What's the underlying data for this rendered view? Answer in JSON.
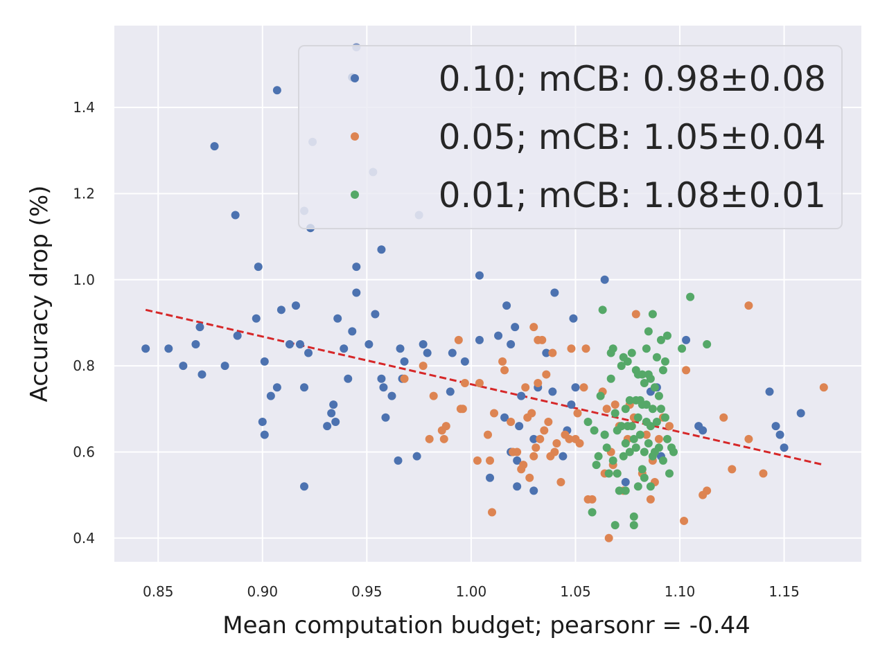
{
  "chart_data": {
    "type": "scatter",
    "xlabel": "Mean computation budget; pearsonr = -0.44",
    "ylabel": "Accuracy drop (%)",
    "xlim": [
      0.829,
      1.187
    ],
    "ylim": [
      0.345,
      1.59
    ],
    "x_ticks": [
      "0.85",
      "0.90",
      "0.95",
      "1.00",
      "1.05",
      "1.10",
      "1.15"
    ],
    "y_ticks": [
      "0.4",
      "0.6",
      "0.8",
      "1.0",
      "1.2",
      "1.4"
    ],
    "grid": true,
    "legend_position": "top-right",
    "colors": {
      "background": "#eaeaf2",
      "grid": "#ffffff",
      "trend": "#d62728"
    },
    "trend_line": {
      "x": [
        0.844,
        1.169
      ],
      "y": [
        0.93,
        0.57
      ]
    },
    "series": [
      {
        "name": "0.10; mCB: 0.98±0.08",
        "color": "#4c72b0",
        "points": [
          [
            0.844,
            0.84
          ],
          [
            0.855,
            0.84
          ],
          [
            0.868,
            0.85
          ],
          [
            0.862,
            0.8
          ],
          [
            0.87,
            0.89
          ],
          [
            0.871,
            0.78
          ],
          [
            0.877,
            1.31
          ],
          [
            0.882,
            0.8
          ],
          [
            0.887,
            1.15
          ],
          [
            0.888,
            0.87
          ],
          [
            0.897,
            0.91
          ],
          [
            0.898,
            1.03
          ],
          [
            0.9,
            0.67
          ],
          [
            0.901,
            0.64
          ],
          [
            0.901,
            0.81
          ],
          [
            0.904,
            0.73
          ],
          [
            0.907,
            0.75
          ],
          [
            0.907,
            1.44
          ],
          [
            0.909,
            0.93
          ],
          [
            0.913,
            0.85
          ],
          [
            0.916,
            0.94
          ],
          [
            0.918,
            0.85
          ],
          [
            0.92,
            0.75
          ],
          [
            0.92,
            0.52
          ],
          [
            0.922,
            0.83
          ],
          [
            0.923,
            1.12
          ],
          [
            0.931,
            0.66
          ],
          [
            0.933,
            0.69
          ],
          [
            0.934,
            0.71
          ],
          [
            0.935,
            0.67
          ],
          [
            0.936,
            0.91
          ],
          [
            0.939,
            0.84
          ],
          [
            0.941,
            0.77
          ],
          [
            0.943,
            1.47
          ],
          [
            0.943,
            0.88
          ],
          [
            0.945,
            1.03
          ],
          [
            0.945,
            0.97
          ],
          [
            0.951,
            0.85
          ],
          [
            0.954,
            0.92
          ],
          [
            0.957,
            1.07
          ],
          [
            0.957,
            0.77
          ],
          [
            0.958,
            0.75
          ],
          [
            0.959,
            0.68
          ],
          [
            0.962,
            0.73
          ],
          [
            0.965,
            0.58
          ],
          [
            0.966,
            0.84
          ],
          [
            0.967,
            0.77
          ],
          [
            0.968,
            0.81
          ],
          [
            0.974,
            0.59
          ],
          [
            0.977,
            0.85
          ],
          [
            0.979,
            0.83
          ],
          [
            0.99,
            0.74
          ],
          [
            0.991,
            0.83
          ],
          [
            0.997,
            0.81
          ],
          [
            1.004,
            1.01
          ],
          [
            1.004,
            0.86
          ],
          [
            1.009,
            0.54
          ],
          [
            1.013,
            0.87
          ],
          [
            1.016,
            0.68
          ],
          [
            1.017,
            0.94
          ],
          [
            1.019,
            0.6
          ],
          [
            1.019,
            0.85
          ],
          [
            1.021,
            0.89
          ],
          [
            1.022,
            0.58
          ],
          [
            1.022,
            0.52
          ],
          [
            1.023,
            0.66
          ],
          [
            1.024,
            0.73
          ],
          [
            1.03,
            0.63
          ],
          [
            1.03,
            0.51
          ],
          [
            1.032,
            0.75
          ],
          [
            1.036,
            0.83
          ],
          [
            1.039,
            0.74
          ],
          [
            1.04,
            0.97
          ],
          [
            1.044,
            0.59
          ],
          [
            1.046,
            0.65
          ],
          [
            1.048,
            0.71
          ],
          [
            1.049,
            0.91
          ],
          [
            1.05,
            0.75
          ],
          [
            1.064,
            1.0
          ],
          [
            1.064,
            0.64
          ],
          [
            1.074,
            0.53
          ],
          [
            1.086,
            0.74
          ],
          [
            1.089,
            0.75
          ],
          [
            1.091,
            0.59
          ],
          [
            1.103,
            0.86
          ],
          [
            1.109,
            0.66
          ],
          [
            1.111,
            0.65
          ],
          [
            1.143,
            0.74
          ],
          [
            1.146,
            0.66
          ],
          [
            1.148,
            0.64
          ],
          [
            1.15,
            0.61
          ],
          [
            1.158,
            0.69
          ]
        ]
      },
      {
        "name": "",
        "color": "#8da0c9",
        "points": [
          [
            0.945,
            1.54
          ],
          [
            0.924,
            1.32
          ],
          [
            0.953,
            1.25
          ],
          [
            0.92,
            1.16
          ],
          [
            0.975,
            1.15
          ]
        ]
      },
      {
        "name": "0.05; mCB: 1.05±0.04",
        "color": "#dd8452",
        "points": [
          [
            0.968,
            0.77
          ],
          [
            0.977,
            0.8
          ],
          [
            0.98,
            0.63
          ],
          [
            0.982,
            0.73
          ],
          [
            0.986,
            0.65
          ],
          [
            0.987,
            0.63
          ],
          [
            0.988,
            0.66
          ],
          [
            0.994,
            0.86
          ],
          [
            0.995,
            0.7
          ],
          [
            0.996,
            0.7
          ],
          [
            0.997,
            0.76
          ],
          [
            1.003,
            0.58
          ],
          [
            1.004,
            0.76
          ],
          [
            1.008,
            0.64
          ],
          [
            1.009,
            0.58
          ],
          [
            1.01,
            0.46
          ],
          [
            1.011,
            0.69
          ],
          [
            1.015,
            0.81
          ],
          [
            1.016,
            0.79
          ],
          [
            1.019,
            0.67
          ],
          [
            1.02,
            0.6
          ],
          [
            1.022,
            0.6
          ],
          [
            1.024,
            0.56
          ],
          [
            1.025,
            0.57
          ],
          [
            1.026,
            0.75
          ],
          [
            1.027,
            0.68
          ],
          [
            1.028,
            0.54
          ],
          [
            1.029,
            0.69
          ],
          [
            1.03,
            0.89
          ],
          [
            1.03,
            0.59
          ],
          [
            1.031,
            0.61
          ],
          [
            1.032,
            0.86
          ],
          [
            1.032,
            0.76
          ],
          [
            1.033,
            0.63
          ],
          [
            1.034,
            0.86
          ],
          [
            1.035,
            0.65
          ],
          [
            1.036,
            0.78
          ],
          [
            1.037,
            0.67
          ],
          [
            1.038,
            0.59
          ],
          [
            1.039,
            0.83
          ],
          [
            1.04,
            0.6
          ],
          [
            1.041,
            0.62
          ],
          [
            1.043,
            0.53
          ],
          [
            1.045,
            0.64
          ],
          [
            1.047,
            0.63
          ],
          [
            1.048,
            0.84
          ],
          [
            1.05,
            0.63
          ],
          [
            1.051,
            0.69
          ],
          [
            1.052,
            0.62
          ],
          [
            1.054,
            0.75
          ],
          [
            1.055,
            0.84
          ],
          [
            1.056,
            0.49
          ],
          [
            1.058,
            0.49
          ],
          [
            1.063,
            0.74
          ],
          [
            1.064,
            0.55
          ],
          [
            1.065,
            0.7
          ],
          [
            1.066,
            0.4
          ],
          [
            1.067,
            0.6
          ],
          [
            1.068,
            0.57
          ],
          [
            1.069,
            0.71
          ],
          [
            1.07,
            0.55
          ],
          [
            1.071,
            0.66
          ],
          [
            1.073,
            0.51
          ],
          [
            1.075,
            0.63
          ],
          [
            1.076,
            0.71
          ],
          [
            1.078,
            0.68
          ],
          [
            1.079,
            0.92
          ],
          [
            1.082,
            0.55
          ],
          [
            1.084,
            0.64
          ],
          [
            1.086,
            0.49
          ],
          [
            1.087,
            0.58
          ],
          [
            1.088,
            0.53
          ],
          [
            1.09,
            0.63
          ],
          [
            1.092,
            0.68
          ],
          [
            1.095,
            0.66
          ],
          [
            1.102,
            0.44
          ],
          [
            1.103,
            0.79
          ],
          [
            1.111,
            0.5
          ],
          [
            1.113,
            0.51
          ],
          [
            1.121,
            0.68
          ],
          [
            1.125,
            0.56
          ],
          [
            1.133,
            0.94
          ],
          [
            1.133,
            0.63
          ],
          [
            1.14,
            0.55
          ],
          [
            1.169,
            0.75
          ]
        ]
      },
      {
        "name": "0.01; mCB: 1.08±0.01",
        "color": "#55a868",
        "points": [
          [
            1.056,
            0.67
          ],
          [
            1.058,
            0.46
          ],
          [
            1.059,
            0.65
          ],
          [
            1.06,
            0.57
          ],
          [
            1.061,
            0.59
          ],
          [
            1.062,
            0.73
          ],
          [
            1.063,
            0.93
          ],
          [
            1.064,
            0.64
          ],
          [
            1.065,
            0.61
          ],
          [
            1.066,
            0.55
          ],
          [
            1.067,
            0.83
          ],
          [
            1.067,
            0.77
          ],
          [
            1.068,
            0.58
          ],
          [
            1.068,
            0.84
          ],
          [
            1.069,
            0.69
          ],
          [
            1.069,
            0.43
          ],
          [
            1.07,
            0.65
          ],
          [
            1.07,
            0.55
          ],
          [
            1.071,
            0.51
          ],
          [
            1.072,
            0.8
          ],
          [
            1.072,
            0.66
          ],
          [
            1.073,
            0.82
          ],
          [
            1.073,
            0.59
          ],
          [
            1.074,
            0.62
          ],
          [
            1.074,
            0.7
          ],
          [
            1.074,
            0.51
          ],
          [
            1.075,
            0.81
          ],
          [
            1.075,
            0.66
          ],
          [
            1.076,
            0.72
          ],
          [
            1.076,
            0.6
          ],
          [
            1.077,
            0.83
          ],
          [
            1.077,
            0.66
          ],
          [
            1.078,
            0.63
          ],
          [
            1.078,
            0.45
          ],
          [
            1.078,
            0.43
          ],
          [
            1.079,
            0.79
          ],
          [
            1.079,
            0.72
          ],
          [
            1.079,
            0.61
          ],
          [
            1.08,
            0.78
          ],
          [
            1.08,
            0.68
          ],
          [
            1.08,
            0.52
          ],
          [
            1.081,
            0.72
          ],
          [
            1.081,
            0.64
          ],
          [
            1.082,
            0.78
          ],
          [
            1.082,
            0.71
          ],
          [
            1.082,
            0.56
          ],
          [
            1.083,
            0.76
          ],
          [
            1.083,
            0.6
          ],
          [
            1.083,
            0.54
          ],
          [
            1.084,
            0.84
          ],
          [
            1.084,
            0.71
          ],
          [
            1.084,
            0.67
          ],
          [
            1.085,
            0.88
          ],
          [
            1.085,
            0.78
          ],
          [
            1.085,
            0.62
          ],
          [
            1.086,
            0.77
          ],
          [
            1.086,
            0.66
          ],
          [
            1.086,
            0.52
          ],
          [
            1.087,
            0.92
          ],
          [
            1.087,
            0.7
          ],
          [
            1.087,
            0.59
          ],
          [
            1.088,
            0.75
          ],
          [
            1.088,
            0.6
          ],
          [
            1.089,
            0.82
          ],
          [
            1.089,
            0.67
          ],
          [
            1.09,
            0.73
          ],
          [
            1.09,
            0.61
          ],
          [
            1.091,
            0.86
          ],
          [
            1.091,
            0.7
          ],
          [
            1.092,
            0.79
          ],
          [
            1.092,
            0.58
          ],
          [
            1.093,
            0.81
          ],
          [
            1.093,
            0.68
          ],
          [
            1.094,
            0.63
          ],
          [
            1.094,
            0.87
          ],
          [
            1.095,
            0.55
          ],
          [
            1.096,
            0.61
          ],
          [
            1.097,
            0.6
          ],
          [
            1.101,
            0.84
          ],
          [
            1.105,
            0.96
          ],
          [
            1.113,
            0.85
          ]
        ]
      }
    ]
  }
}
